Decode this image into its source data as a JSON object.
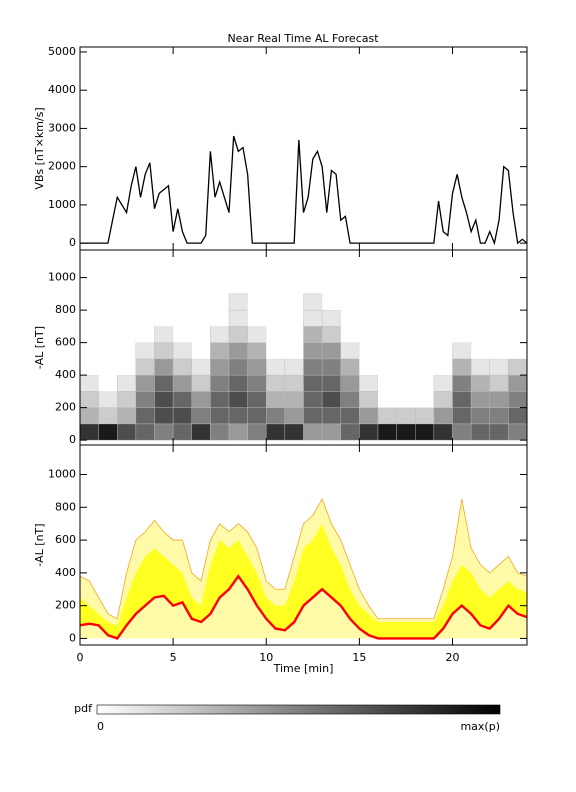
{
  "chart_data": [
    {
      "type": "line",
      "title": "Near Real Time AL Forecast",
      "ylabel": "VBs [nT×km/s]",
      "color": "#000000",
      "x": [
        0,
        0.25,
        0.5,
        0.75,
        1,
        1.25,
        1.5,
        1.75,
        2,
        2.25,
        2.5,
        2.75,
        3,
        3.25,
        3.5,
        3.75,
        4,
        4.25,
        4.5,
        4.75,
        5,
        5.25,
        5.5,
        5.75,
        6,
        6.25,
        6.5,
        6.75,
        7,
        7.25,
        7.5,
        7.75,
        8,
        8.25,
        8.5,
        8.75,
        9,
        9.25,
        9.5,
        9.75,
        10,
        10.25,
        10.5,
        10.75,
        11,
        11.25,
        11.5,
        11.75,
        12,
        12.25,
        12.5,
        12.75,
        13,
        13.25,
        13.5,
        13.75,
        14,
        14.25,
        14.5,
        14.75,
        15,
        15.25,
        15.5,
        15.75,
        16,
        16.25,
        16.5,
        16.75,
        17,
        17.25,
        17.5,
        17.75,
        18,
        18.25,
        18.5,
        18.75,
        19,
        19.25,
        19.5,
        19.75,
        20,
        20.25,
        20.5,
        20.75,
        21,
        21.25,
        21.5,
        21.75,
        22,
        22.25,
        22.5,
        22.75,
        23,
        23.25,
        23.5,
        23.75,
        24
      ],
      "values": [
        0,
        0,
        0,
        0,
        0,
        0,
        0,
        600,
        1200,
        1000,
        800,
        1500,
        2000,
        1200,
        1800,
        2100,
        900,
        1300,
        1400,
        1500,
        300,
        900,
        300,
        0,
        0,
        0,
        0,
        200,
        2400,
        1200,
        1600,
        1200,
        800,
        2800,
        2400,
        2500,
        1800,
        0,
        0,
        0,
        0,
        0,
        0,
        0,
        0,
        0,
        0,
        2700,
        800,
        1200,
        2200,
        2400,
        2000,
        800,
        1900,
        1800,
        600,
        700,
        0,
        0,
        0,
        0,
        0,
        0,
        0,
        0,
        0,
        0,
        0,
        0,
        0,
        0,
        0,
        0,
        0,
        0,
        0,
        1100,
        300,
        200,
        1300,
        1800,
        1200,
        800,
        300,
        600,
        0,
        0,
        300,
        0,
        600,
        2000,
        1900,
        800,
        0,
        100,
        0
      ],
      "xlim": [
        0,
        24
      ],
      "xticks": [
        0,
        5,
        10,
        15,
        20
      ],
      "ylim": [
        -180,
        5130
      ],
      "yticks": [
        0,
        1000,
        2000,
        3000,
        4000,
        5000
      ]
    },
    {
      "type": "heatmap",
      "ylabel": "-AL [nT]",
      "xbins": [
        0,
        1,
        2,
        3,
        4,
        5,
        6,
        7,
        8,
        9,
        10,
        11,
        12,
        13,
        14,
        15,
        16,
        17,
        18,
        19,
        20,
        21,
        22,
        23,
        24
      ],
      "ybins": [
        0,
        100,
        200,
        300,
        400,
        500,
        600,
        700,
        800,
        900
      ],
      "z": [
        [
          0.8,
          0.3,
          0.2,
          0.1,
          0,
          0,
          0,
          0,
          0
        ],
        [
          0.9,
          0.2,
          0.1,
          0,
          0,
          0,
          0,
          0,
          0
        ],
        [
          0.7,
          0.3,
          0.2,
          0.1,
          0,
          0,
          0,
          0,
          0
        ],
        [
          0.6,
          0.6,
          0.5,
          0.4,
          0.2,
          0.1,
          0,
          0,
          0
        ],
        [
          0.5,
          0.7,
          0.7,
          0.6,
          0.4,
          0.2,
          0.1,
          0,
          0
        ],
        [
          0.6,
          0.7,
          0.6,
          0.4,
          0.2,
          0.1,
          0,
          0,
          0
        ],
        [
          0.8,
          0.5,
          0.4,
          0.2,
          0.1,
          0,
          0,
          0,
          0
        ],
        [
          0.5,
          0.6,
          0.6,
          0.5,
          0.4,
          0.3,
          0.1,
          0,
          0
        ],
        [
          0.4,
          0.6,
          0.7,
          0.6,
          0.5,
          0.4,
          0.2,
          0.1,
          0.1
        ],
        [
          0.5,
          0.6,
          0.6,
          0.5,
          0.4,
          0.3,
          0.1,
          0,
          0
        ],
        [
          0.8,
          0.5,
          0.3,
          0.2,
          0.1,
          0,
          0,
          0,
          0
        ],
        [
          0.8,
          0.4,
          0.3,
          0.2,
          0.1,
          0,
          0,
          0,
          0
        ],
        [
          0.4,
          0.6,
          0.6,
          0.6,
          0.5,
          0.4,
          0.3,
          0.1,
          0.1
        ],
        [
          0.4,
          0.6,
          0.7,
          0.6,
          0.5,
          0.4,
          0.2,
          0.1,
          0
        ],
        [
          0.6,
          0.6,
          0.5,
          0.4,
          0.3,
          0.1,
          0,
          0,
          0
        ],
        [
          0.8,
          0.4,
          0.2,
          0.1,
          0,
          0,
          0,
          0,
          0
        ],
        [
          0.9,
          0.2,
          0,
          0,
          0,
          0,
          0,
          0,
          0
        ],
        [
          0.9,
          0.2,
          0,
          0,
          0,
          0,
          0,
          0,
          0
        ],
        [
          0.9,
          0.2,
          0,
          0,
          0,
          0,
          0,
          0,
          0
        ],
        [
          0.8,
          0.4,
          0.2,
          0.1,
          0,
          0,
          0,
          0,
          0
        ],
        [
          0.5,
          0.6,
          0.6,
          0.5,
          0.3,
          0.1,
          0,
          0,
          0
        ],
        [
          0.6,
          0.5,
          0.4,
          0.3,
          0.1,
          0,
          0,
          0,
          0
        ],
        [
          0.6,
          0.5,
          0.4,
          0.2,
          0.1,
          0,
          0,
          0,
          0
        ],
        [
          0.5,
          0.6,
          0.5,
          0.4,
          0.2,
          0,
          0,
          0,
          0
        ]
      ],
      "colorbar_label": "pdf",
      "colorbar_ticks": [
        0,
        {
          "value": 1,
          "label": "max(p)"
        }
      ],
      "xlim": [
        0,
        24
      ],
      "xticks": [
        0,
        5,
        10,
        15,
        20
      ],
      "ylim": [
        -30,
        1170
      ],
      "yticks": [
        0,
        200,
        400,
        600,
        800,
        1000
      ]
    },
    {
      "type": "area",
      "ylabel": "-AL [nT]",
      "xlabel": "Time [min]",
      "x": [
        0,
        0.5,
        1,
        1.5,
        2,
        2.5,
        3,
        3.5,
        4,
        4.5,
        5,
        5.5,
        6,
        6.5,
        7,
        7.5,
        8,
        8.5,
        9,
        9.5,
        10,
        10.5,
        11,
        11.5,
        12,
        12.5,
        13,
        13.5,
        14,
        14.5,
        15,
        15.5,
        16,
        16.5,
        17,
        17.5,
        18,
        18.5,
        19,
        19.5,
        20,
        20.5,
        21,
        21.5,
        22,
        22.5,
        23,
        23.5,
        24
      ],
      "series": [
        {
          "color": "#fffaa8",
          "edge_color": "#f5a623",
          "values": [
            380,
            350,
            250,
            150,
            120,
            400,
            600,
            650,
            720,
            650,
            600,
            600,
            400,
            350,
            600,
            700,
            650,
            700,
            650,
            550,
            350,
            300,
            300,
            500,
            700,
            750,
            850,
            700,
            600,
            450,
            300,
            200,
            120,
            120,
            120,
            120,
            120,
            120,
            120,
            300,
            500,
            850,
            550,
            450,
            400,
            450,
            500,
            400,
            380
          ]
        },
        {
          "color": "#ffff22",
          "values": [
            250,
            200,
            150,
            100,
            80,
            250,
            400,
            500,
            550,
            500,
            450,
            400,
            250,
            200,
            450,
            600,
            550,
            600,
            500,
            400,
            250,
            200,
            200,
            350,
            550,
            600,
            700,
            550,
            450,
            300,
            200,
            150,
            100,
            100,
            100,
            100,
            100,
            100,
            100,
            200,
            350,
            450,
            400,
            300,
            250,
            300,
            350,
            300,
            280
          ]
        },
        {
          "color": "#ff0000",
          "values": [
            80,
            90,
            80,
            20,
            0,
            80,
            150,
            200,
            250,
            260,
            200,
            220,
            120,
            100,
            150,
            250,
            300,
            380,
            300,
            200,
            120,
            60,
            50,
            100,
            200,
            250,
            300,
            250,
            200,
            120,
            60,
            20,
            0,
            0,
            0,
            0,
            0,
            0,
            0,
            60,
            150,
            200,
            150,
            80,
            60,
            120,
            200,
            150,
            130
          ]
        }
      ],
      "xlim": [
        0,
        24
      ],
      "xticks": [
        0,
        5,
        10,
        15,
        20
      ],
      "ylim": [
        -40,
        1180
      ],
      "yticks": [
        0,
        200,
        400,
        600,
        800,
        1000
      ]
    }
  ]
}
